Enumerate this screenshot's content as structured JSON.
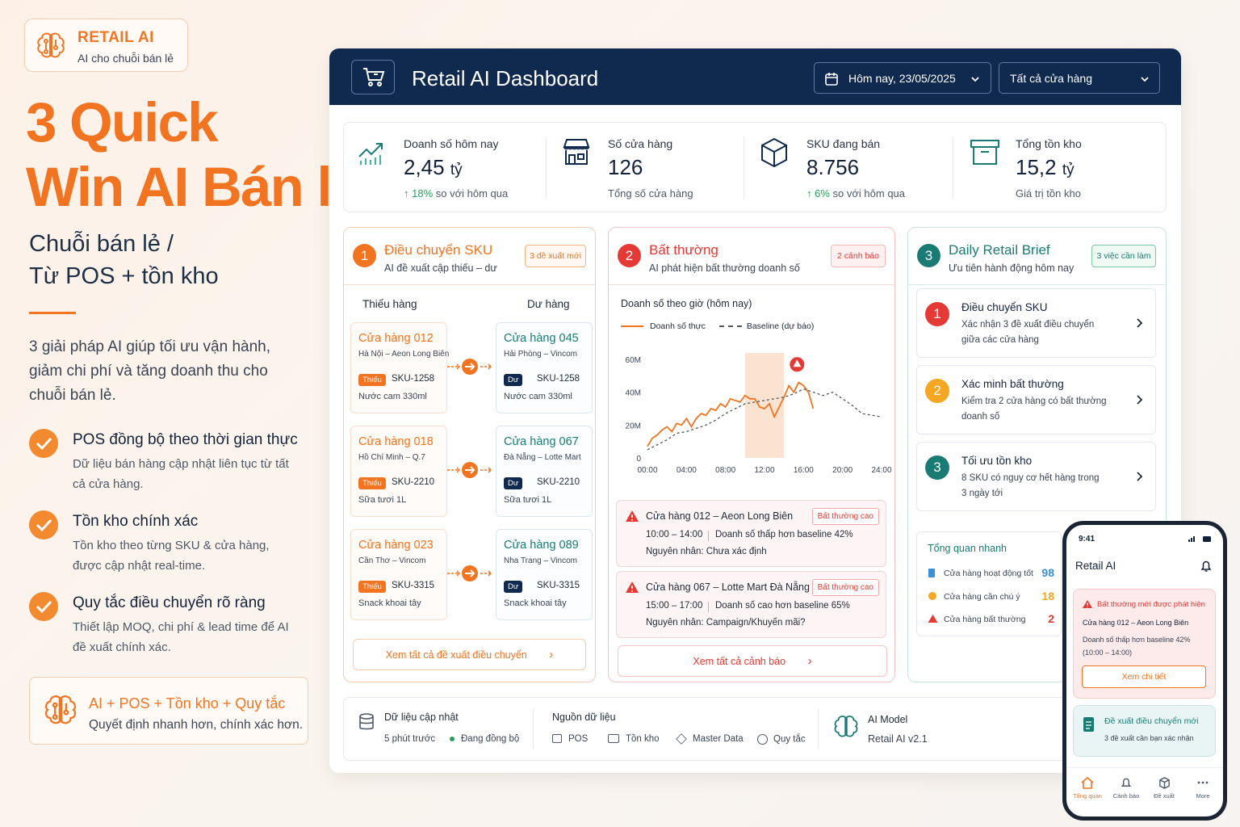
{
  "brand": {
    "title": "RETAIL AI",
    "subtitle": "AI cho chuỗi bán lẻ"
  },
  "hero": {
    "line1": "3 Quick",
    "line2": "Win AI Bán lẻ",
    "sub1": "Chuỗi bán lẻ /",
    "sub2": "Từ POS + tồn kho",
    "lead": "3 giải pháp AI giúp tối ưu vận hành, giảm chi phí và tăng doanh thu cho chuỗi bán lẻ."
  },
  "features": [
    {
      "title": "POS đồng bộ theo thời gian thực",
      "desc": "Dữ liệu bán hàng cập nhật liên tục từ tất cả cửa hàng."
    },
    {
      "title": "Tồn kho chính xác",
      "desc": "Tồn kho theo từng SKU & cửa hàng, được cập nhật real-time."
    },
    {
      "title": "Quy tắc điều chuyển rõ ràng",
      "desc": "Thiết lập MOQ, chi phí & lead time để AI đề xuất chính xác."
    }
  ],
  "combo": {
    "title": "AI + POS + Tồn kho + Quy tắc",
    "subtitle": "Quyết định nhanh hơn, chính xác hơn."
  },
  "dashboard": {
    "title": "Retail AI Dashboard",
    "date_select": "Hôm nay, 23/05/2025",
    "store_select": "Tất cả cửa hàng",
    "kpis": [
      {
        "label": "Doanh số hôm nay",
        "value": "2,45",
        "unit": "tỷ",
        "delta": "18%",
        "note": "so với hôm qua"
      },
      {
        "label": "Số cửa hàng",
        "value": "126",
        "unit": "",
        "delta": "",
        "note": "Tổng số cửa hàng"
      },
      {
        "label": "SKU đang bán",
        "value": "8.756",
        "unit": "",
        "delta": "6%",
        "note": "so với hôm qua"
      },
      {
        "label": "Tổng tồn kho",
        "value": "15,2",
        "unit": "tỷ",
        "delta": "",
        "note": "Giá trị tồn kho"
      }
    ],
    "transfer": {
      "num": "1",
      "title": "Điều chuyển SKU",
      "subtitle": "AI đề xuất cập thiếu – dư",
      "badge": "3 đề xuất mới",
      "col_short": "Thiếu hàng",
      "col_excess": "Dư hàng",
      "rows": [
        {
          "from": {
            "store": "Cửa hàng 012",
            "addr": "Hà Nội – Aeon Long Biên",
            "tag": "Thiếu",
            "sku": "SKU-1258",
            "product": "Nước cam 330ml"
          },
          "to": {
            "store": "Cửa hàng 045",
            "addr": "Hải Phòng – Vincom",
            "tag": "Dư",
            "sku": "SKU-1258",
            "product": "Nước cam 330ml"
          }
        },
        {
          "from": {
            "store": "Cửa hàng 018",
            "addr": "Hồ Chí Minh – Q.7",
            "tag": "Thiếu",
            "sku": "SKU-2210",
            "product": "Sữa tươi 1L"
          },
          "to": {
            "store": "Cửa hàng 067",
            "addr": "Đà Nẵng – Lotte Mart",
            "tag": "Dư",
            "sku": "SKU-2210",
            "product": "Sữa tươi 1L"
          }
        },
        {
          "from": {
            "store": "Cửa hàng 023",
            "addr": "Cần Thơ – Vincom",
            "tag": "Thiếu",
            "sku": "SKU-3315",
            "product": "Snack khoai tây"
          },
          "to": {
            "store": "Cửa hàng 089",
            "addr": "Nha Trang – Vincom",
            "tag": "Dư",
            "sku": "SKU-3315",
            "product": "Snack khoai tây"
          }
        }
      ],
      "link": "Xem tất cả đề xuất điều chuyển"
    },
    "anomaly": {
      "num": "2",
      "title": "Bất thường",
      "subtitle": "AI phát hiện bất thường doanh số",
      "badge": "2 cảnh báo",
      "chart_title": "Doanh số theo giờ (hôm nay)",
      "alerts": [
        {
          "title": "Cửa hàng 012 – Aeon Long Biên",
          "badge": "Bất thường cao",
          "time": "10:00 – 14:00",
          "detail": "Doanh số thấp hơn baseline 42%",
          "cause": "Nguyên nhân: Chưa xác định"
        },
        {
          "title": "Cửa hàng 067 – Lotte Mart Đà Nẵng",
          "badge": "Bất thường cao",
          "time": "15:00 – 17:00",
          "detail": "Doanh số cao hơn baseline 65%",
          "cause": "Nguyên nhân: Campaign/Khuyến mãi?"
        }
      ],
      "link": "Xem tất cả cảnh báo"
    },
    "brief": {
      "num": "3",
      "title": "Daily Retail Brief",
      "subtitle": "Ưu tiên hành động hôm nay",
      "badge": "3 việc cần làm",
      "tasks": [
        {
          "num": "1",
          "title": "Điều chuyển SKU",
          "desc": "Xác nhận 3 đề xuất điều chuyển giữa các cửa hàng"
        },
        {
          "num": "2",
          "title": "Xác minh bất thường",
          "desc": "Kiểm tra 2 cửa hàng có bất thường doanh số"
        },
        {
          "num": "3",
          "title": "Tối ưu tồn kho",
          "desc": "8 SKU có nguy cơ hết hàng trong 3 ngày tới"
        }
      ],
      "overview_title": "Tổng quan nhanh",
      "overview": [
        {
          "label": "Cửa hàng hoạt động tốt",
          "value": "98"
        },
        {
          "label": "Cửa hàng cần chú ý",
          "value": "18"
        },
        {
          "label": "Cửa hàng bất thường",
          "value": "2"
        }
      ]
    },
    "footer": {
      "data_title": "Dữ liệu cập nhật",
      "data_time": "5 phút trước",
      "data_status": "Đang đồng bộ",
      "source_title": "Nguồn dữ liệu",
      "sources": [
        "POS",
        "Tồn kho",
        "Master Data",
        "Quy tắc"
      ],
      "model_title": "AI Model",
      "model_name": "Retail AI v2.1"
    }
  },
  "chart_data": {
    "type": "line",
    "title": "Doanh số theo giờ (hôm nay)",
    "x_ticks": [
      "00:00",
      "04:00",
      "08:00",
      "12:00",
      "16:00",
      "20:00",
      "24:00"
    ],
    "y_ticks": [
      "0",
      "20M",
      "40M",
      "60M"
    ],
    "ylim": [
      0,
      60
    ],
    "series": [
      {
        "name": "Doanh số thực",
        "color": "#f27420",
        "x": [
          0,
          0.5,
          1,
          1.5,
          2,
          2.5,
          3,
          3.5,
          4,
          4.5,
          5,
          5.5,
          6,
          6.5,
          7,
          7.5,
          8,
          8.5,
          9,
          9.5,
          10,
          10.5,
          11,
          11.5,
          12,
          12.5,
          13,
          13.5,
          14,
          14.5,
          15,
          15.5,
          16,
          16.5,
          17
        ],
        "y": [
          7,
          12,
          14,
          17,
          19,
          16,
          21,
          20,
          24,
          19,
          24,
          27,
          26,
          30,
          29,
          33,
          31,
          36,
          35,
          34,
          38,
          36,
          36,
          31,
          30,
          33,
          25,
          31,
          37,
          44,
          40,
          46,
          44,
          40,
          30
        ]
      },
      {
        "name": "Baseline (dự báo)",
        "color": "#555555",
        "dashed": true,
        "x": [
          0,
          1,
          2,
          3,
          4,
          5,
          6,
          7,
          8,
          9,
          10,
          11,
          12,
          13,
          14,
          15,
          16,
          17,
          18,
          19,
          20,
          21,
          22,
          23,
          24
        ],
        "y": [
          5,
          8,
          11,
          15,
          16,
          18,
          20,
          23,
          27,
          30,
          33,
          34,
          35,
          36,
          37,
          39,
          42,
          40,
          38,
          40,
          36,
          32,
          27,
          26,
          25
        ]
      }
    ],
    "highlight_range": [
      10,
      14
    ],
    "alert_marker": {
      "x": 16,
      "y": 54
    }
  },
  "phone": {
    "time": "9:41",
    "app": "Retail AI",
    "alert_title": "Bất thường mới được phát hiện",
    "alert_store": "Cửa hàng 012 – Aeon Long Biên",
    "alert_desc": "Doanh số thấp hơn baseline 42% (10:00 – 14:00)",
    "alert_btn": "Xem chi tiết",
    "new_title": "Đề xuất điều chuyển mới",
    "new_desc": "3 đề xuất cần bạn xác nhận",
    "tabs": [
      "Tổng quan",
      "Cảnh báo",
      "Đề xuất",
      "More"
    ]
  },
  "colors": {
    "orange": "#f27420",
    "navy": "#10294f",
    "red": "#e53935",
    "teal": "#1a7b74",
    "green": "#2a9d5c"
  }
}
